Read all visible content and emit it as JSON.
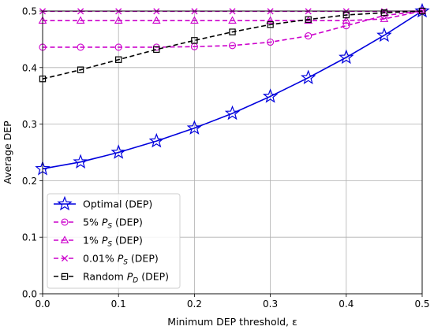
{
  "chart_data": {
    "type": "line",
    "xlabel": "Minimum DEP threshold, ε",
    "ylabel": "Average DEP",
    "xlim": [
      0,
      0.5
    ],
    "ylim": [
      0,
      0.5
    ],
    "xticks": [
      "0.0",
      "0.1",
      "0.2",
      "0.3",
      "0.4",
      "0.5"
    ],
    "yticks": [
      "0.0",
      "0.1",
      "0.2",
      "0.3",
      "0.4",
      "0.5"
    ],
    "grid": true,
    "legend_position": "lower-left",
    "x": [
      0,
      0.05,
      0.1,
      0.15,
      0.2,
      0.25,
      0.3,
      0.35,
      0.4,
      0.45,
      0.5
    ],
    "series": [
      {
        "name": "Optimal (DEP)",
        "legend_parts": [
          "Optimal (DEP)"
        ],
        "color": "#0000dd",
        "dash": "solid",
        "marker": "star",
        "values": [
          0.221,
          0.233,
          0.25,
          0.27,
          0.293,
          0.319,
          0.349,
          0.382,
          0.418,
          0.457,
          0.5
        ]
      },
      {
        "name": "5% P_S (DEP)",
        "legend_parts": [
          "5% ",
          "P",
          "S",
          " (DEP)"
        ],
        "color": "#cc00cc",
        "dash": "dashed",
        "marker": "circle",
        "values": [
          0.436,
          0.436,
          0.436,
          0.436,
          0.437,
          0.439,
          0.445,
          0.456,
          0.474,
          0.492,
          0.5
        ]
      },
      {
        "name": "1% P_S (DEP)",
        "legend_parts": [
          "1% ",
          "P",
          "S",
          " (DEP)"
        ],
        "color": "#cc00cc",
        "dash": "dashed",
        "marker": "triangle",
        "values": [
          0.483,
          0.483,
          0.483,
          0.483,
          0.483,
          0.483,
          0.483,
          0.483,
          0.483,
          0.486,
          0.5
        ]
      },
      {
        "name": "0.01% P_S (DEP)",
        "legend_parts": [
          "0.01% ",
          "P",
          "S",
          " (DEP)"
        ],
        "color": "#cc00cc",
        "dash": "dashed",
        "marker": "x",
        "values": [
          0.4995,
          0.4995,
          0.4995,
          0.4995,
          0.4995,
          0.4995,
          0.4995,
          0.4995,
          0.4995,
          0.4995,
          0.5
        ]
      },
      {
        "name": "Random P_D (DEP)",
        "legend_parts": [
          "Random ",
          "P",
          "D",
          " (DEP)"
        ],
        "color": "#000000",
        "dash": "dashed",
        "marker": "square",
        "values": [
          0.38,
          0.396,
          0.414,
          0.432,
          0.448,
          0.463,
          0.476,
          0.485,
          0.493,
          0.497,
          0.5
        ]
      }
    ]
  }
}
